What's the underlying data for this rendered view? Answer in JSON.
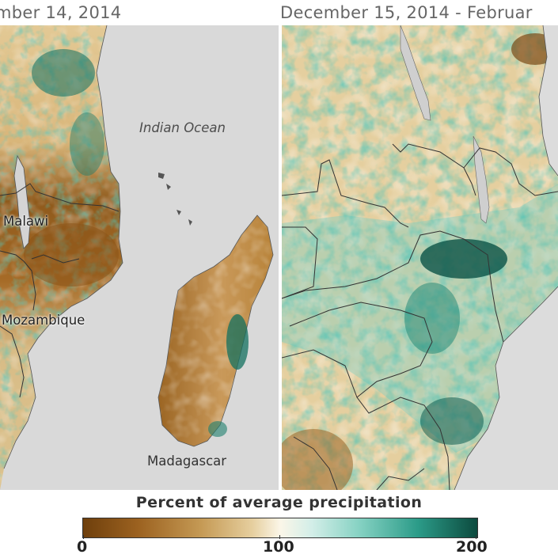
{
  "panels": {
    "left_title": "mber 14, 2014",
    "right_title": "December 15, 2014 - Februar"
  },
  "labels": {
    "ocean": "Indian Ocean",
    "malawi": "Malawi",
    "mozambique": "Mozambique",
    "madagascar": "Madagascar"
  },
  "legend": {
    "title": "Percent of average precipitation",
    "min": "0",
    "mid": "100",
    "max": "200",
    "colors": {
      "dry": "#6e3f0c",
      "normal": "#fbf6e8",
      "wet": "#0c4a3e"
    }
  }
}
